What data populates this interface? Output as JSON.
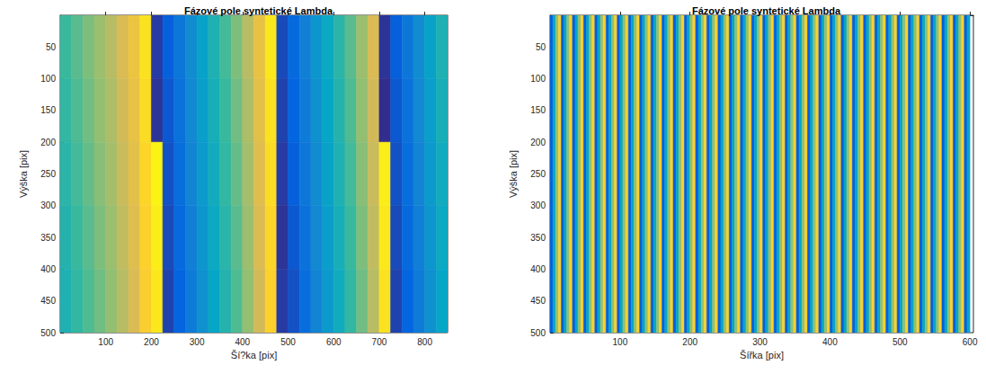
{
  "chart_data": [
    {
      "type": "heatmap",
      "title": "Fázové pole syntetické Lambda",
      "xlabel": "Ší?ka [pix]",
      "ylabel": "Výška [pix]",
      "xlim": [
        0,
        850
      ],
      "ylim": [
        0,
        500
      ],
      "xticks": [
        100,
        200,
        300,
        400,
        500,
        600,
        700,
        800
      ],
      "yticks": [
        50,
        100,
        150,
        200,
        250,
        300,
        350,
        400,
        450,
        500
      ],
      "clim": [
        -3.14,
        3.14
      ],
      "x_edges": [
        0,
        25,
        50,
        75,
        100,
        125,
        150,
        175,
        200,
        225,
        250,
        275,
        300,
        325,
        350,
        375,
        400,
        425,
        450,
        475,
        500,
        525,
        550,
        575,
        600,
        625,
        650,
        675,
        700,
        725,
        750,
        775,
        800,
        825,
        850
      ],
      "y_edges": [
        0,
        100,
        200,
        300,
        400,
        500
      ],
      "cells": [
        [
          0.0,
          0.3,
          0.6,
          0.9,
          1.2,
          1.6,
          2.0,
          2.7,
          -2.9,
          -2.4,
          -1.9,
          -1.4,
          -0.9,
          -0.4,
          0.1,
          0.6,
          1.2,
          1.9,
          2.8,
          -2.7,
          -2.2,
          -1.7,
          -1.2,
          -0.7,
          -0.2,
          0.3,
          0.9,
          1.6,
          -3.0,
          -2.4,
          -1.9,
          -1.4,
          -0.9,
          -0.4
        ],
        [
          -0.1,
          0.2,
          0.5,
          0.8,
          1.1,
          1.5,
          1.9,
          2.6,
          -3.0,
          -2.5,
          -2.0,
          -1.5,
          -1.0,
          -0.5,
          0.0,
          0.5,
          1.1,
          1.8,
          2.7,
          -2.8,
          -2.3,
          -1.8,
          -1.3,
          -0.8,
          -0.3,
          0.2,
          0.8,
          1.5,
          -3.1,
          -2.5,
          -2.0,
          -1.5,
          -1.0,
          -0.5
        ],
        [
          -0.2,
          0.1,
          0.4,
          0.7,
          1.0,
          1.4,
          1.8,
          2.5,
          3.0,
          -2.6,
          -2.1,
          -1.6,
          -1.1,
          -0.6,
          -0.1,
          0.4,
          1.0,
          1.7,
          2.6,
          -2.9,
          -2.4,
          -1.9,
          -1.4,
          -0.9,
          -0.4,
          0.1,
          0.7,
          1.4,
          2.9,
          -2.6,
          -2.1,
          -1.6,
          -1.1,
          -0.6
        ],
        [
          -0.3,
          0.0,
          0.3,
          0.6,
          0.9,
          1.3,
          1.7,
          2.4,
          2.9,
          -2.7,
          -2.2,
          -1.7,
          -1.2,
          -0.7,
          -0.2,
          0.3,
          0.9,
          1.6,
          2.5,
          -3.0,
          -2.5,
          -2.0,
          -1.5,
          -1.0,
          -0.5,
          0.0,
          0.6,
          1.3,
          2.8,
          -2.7,
          -2.2,
          -1.7,
          -1.2,
          -0.7
        ],
        [
          -0.4,
          -0.1,
          0.2,
          0.5,
          0.8,
          1.2,
          1.6,
          2.3,
          2.8,
          -2.8,
          -2.3,
          -1.8,
          -1.3,
          -0.8,
          -0.3,
          0.2,
          0.8,
          1.5,
          2.4,
          -2.9,
          -2.6,
          -2.1,
          -1.6,
          -1.1,
          -0.6,
          -0.1,
          0.5,
          1.2,
          2.7,
          -2.8,
          -2.3,
          -1.8,
          -1.3,
          -0.8
        ]
      ]
    },
    {
      "type": "heatmap",
      "title": "Fázové pole syntetické Lambda",
      "xlabel": "Šířka [pix]",
      "ylabel": "Výška [pix]",
      "xlim": [
        0,
        605
      ],
      "ylim": [
        0,
        500
      ],
      "xticks": [
        100,
        200,
        300,
        400,
        500,
        600
      ],
      "yticks": [
        50,
        100,
        150,
        200,
        250,
        300,
        350,
        400,
        450,
        500
      ],
      "clim": [
        -3.14,
        3.14
      ],
      "x_edges": [
        0,
        4,
        8,
        12,
        16,
        20,
        24,
        28,
        32,
        36,
        40,
        44,
        48,
        52,
        56,
        60,
        64,
        68,
        72,
        76,
        80,
        84,
        88,
        92,
        96,
        100,
        104,
        108,
        112,
        116,
        120,
        124,
        128,
        132,
        136,
        140,
        144,
        148,
        152,
        156,
        160,
        164,
        168,
        172,
        176,
        180,
        184,
        188,
        192,
        196,
        200,
        204,
        208,
        212,
        216,
        220,
        224,
        228,
        232,
        236,
        240,
        244,
        248,
        252,
        256,
        260,
        264,
        268,
        272,
        276,
        280,
        284,
        288,
        292,
        296,
        300,
        304,
        308,
        312,
        316,
        320,
        324,
        328,
        332,
        336,
        340,
        344,
        348,
        352,
        356,
        360,
        364,
        368,
        372,
        376,
        380,
        384,
        388,
        392,
        396,
        400,
        404,
        408,
        412,
        416,
        420,
        424,
        428,
        432,
        436,
        440,
        444,
        448,
        452,
        456,
        460,
        464,
        468,
        472,
        476,
        480,
        484,
        488,
        492,
        496,
        500,
        504,
        508,
        512,
        516,
        520,
        524,
        528,
        532,
        536,
        540,
        544,
        548,
        552,
        556,
        560,
        564,
        568,
        572,
        576,
        580,
        584,
        588,
        592,
        596,
        600
      ],
      "y_edges": [
        0,
        500
      ],
      "cells": [
        [
          -2.4,
          -0.8,
          0.8,
          2.4,
          -2.4,
          -0.8,
          0.8,
          2.4,
          -2.4,
          -0.8,
          0.8,
          2.4,
          -2.4,
          -0.8,
          0.8,
          2.4,
          -2.4,
          -0.8,
          0.8,
          2.4,
          -2.4,
          -0.8,
          0.8,
          2.4,
          -2.4,
          -0.8,
          0.8,
          2.4,
          -2.4,
          -0.8,
          0.8,
          2.4,
          -2.4,
          -0.8,
          0.8,
          2.4,
          -2.4,
          -0.8,
          0.8,
          2.4,
          -2.4,
          -0.8,
          0.8,
          2.4,
          -2.4,
          -0.8,
          0.8,
          2.4,
          -2.4,
          -0.8,
          0.8,
          2.4,
          -2.4,
          -0.8,
          0.8,
          2.4,
          -2.4,
          -0.8,
          0.8,
          2.4,
          -2.4,
          -0.8,
          0.8,
          2.4,
          -2.4,
          -0.8,
          0.8,
          2.4,
          -2.4,
          -0.8,
          0.8,
          2.4,
          -2.4,
          -0.8,
          0.8,
          2.4,
          -2.4,
          -0.8,
          0.8,
          2.4,
          -2.4,
          -0.8,
          0.8,
          2.4,
          -2.4,
          -0.8,
          0.8,
          2.4,
          -2.4,
          -0.8,
          0.8,
          2.4,
          -2.4,
          -0.8,
          0.8,
          2.4,
          -2.4,
          -0.8,
          0.8,
          2.4,
          -2.4,
          -0.8,
          0.8,
          2.4,
          -2.4,
          -0.8,
          0.8,
          2.4,
          -2.4,
          -0.8,
          0.8,
          2.4,
          -2.4,
          -0.8,
          0.8,
          2.4,
          -2.4,
          -0.8,
          0.8,
          2.4,
          -2.4,
          -0.8,
          0.8,
          2.4,
          -2.4,
          -0.8,
          0.8,
          2.4,
          -2.4,
          -0.8,
          0.8,
          2.4,
          -2.4,
          -0.8,
          0.8,
          2.4,
          -2.4,
          -0.8,
          0.8,
          2.4,
          -2.4,
          -0.8,
          0.8,
          2.4,
          -2.4,
          -0.8,
          0.8,
          2.4,
          -2.4,
          -0.8
        ]
      ]
    }
  ]
}
